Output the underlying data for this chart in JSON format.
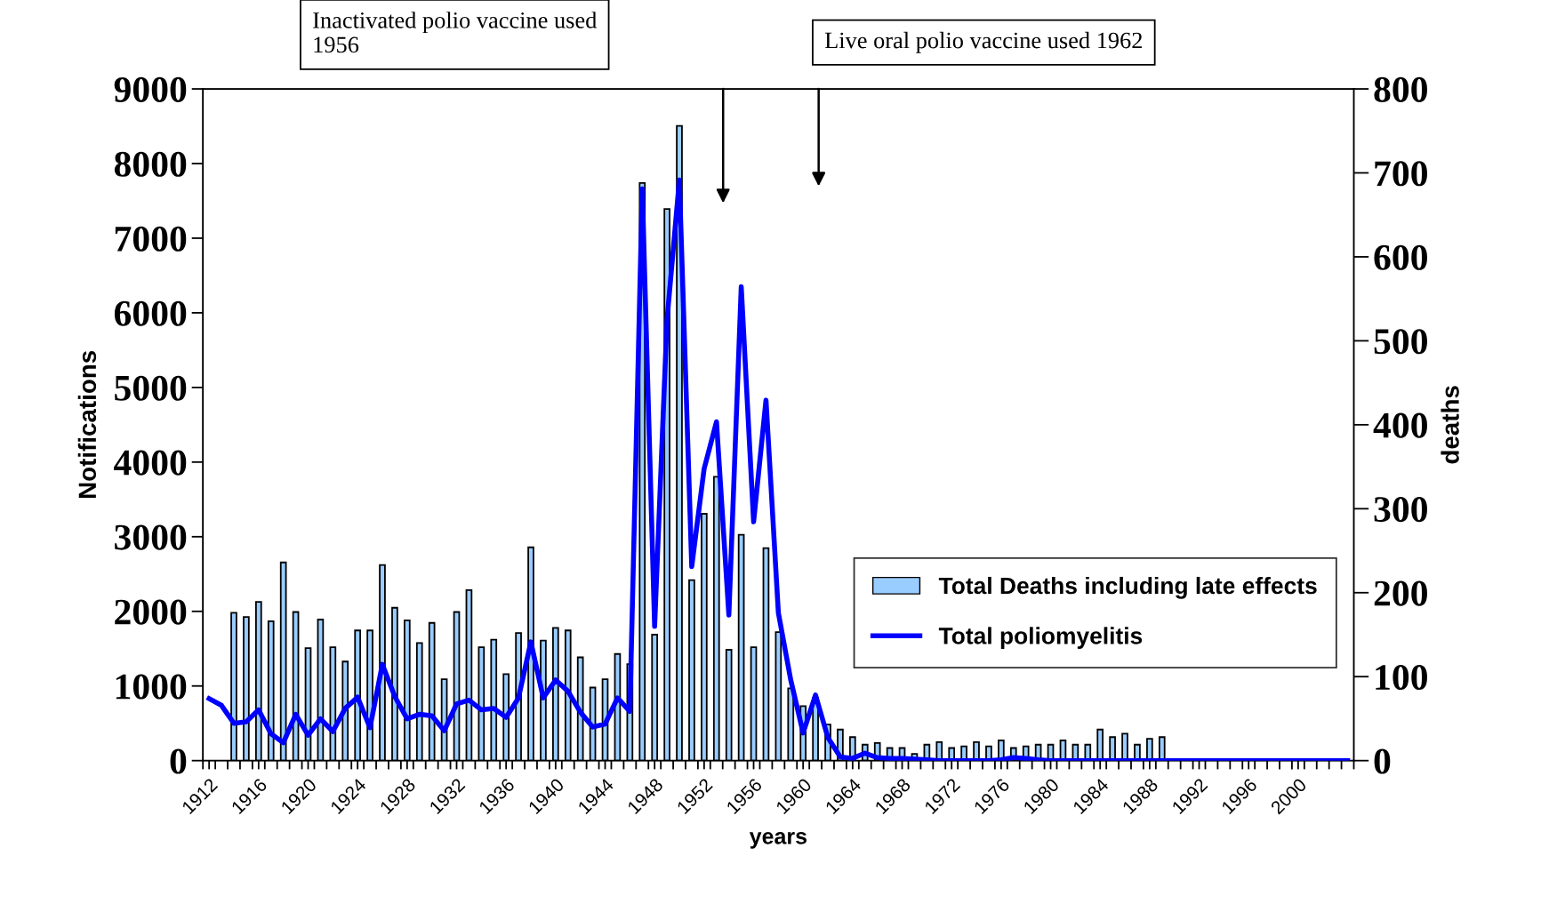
{
  "chart_data": {
    "type": "bar",
    "xlabel": "years",
    "ylabel": "Notifications",
    "y2label": "deaths",
    "x": [
      1912,
      1913,
      1914,
      1915,
      1916,
      1917,
      1918,
      1919,
      1920,
      1921,
      1922,
      1923,
      1924,
      1925,
      1926,
      1927,
      1928,
      1929,
      1930,
      1931,
      1932,
      1933,
      1934,
      1935,
      1936,
      1937,
      1938,
      1939,
      1940,
      1941,
      1942,
      1943,
      1944,
      1945,
      1946,
      1947,
      1948,
      1949,
      1950,
      1951,
      1952,
      1953,
      1954,
      1955,
      1956,
      1957,
      1958,
      1959,
      1960,
      1961,
      1962,
      1963,
      1964,
      1965,
      1966,
      1967,
      1968,
      1969,
      1970,
      1971,
      1972,
      1973,
      1974,
      1975,
      1976,
      1977,
      1978,
      1979,
      1980,
      1981,
      1982,
      1983,
      1984,
      1985,
      1986,
      1987,
      1988,
      1989,
      1990,
      1991,
      1992,
      1993,
      1994,
      1995,
      1996,
      1997,
      1998,
      1999,
      2000,
      2001,
      2002,
      2003,
      2004
    ],
    "series": [
      {
        "name": "Total Deaths including late effects",
        "axis": "y2",
        "color": "#99ccff",
        "values": [
          null,
          null,
          176,
          171,
          189,
          166,
          236,
          177,
          134,
          168,
          135,
          118,
          155,
          155,
          233,
          182,
          167,
          140,
          164,
          97,
          177,
          203,
          135,
          144,
          103,
          152,
          254,
          143,
          158,
          155,
          123,
          87,
          97,
          127,
          115,
          688,
          150,
          657,
          756,
          215,
          294,
          338,
          132,
          269,
          135,
          253,
          153,
          86,
          65,
          75,
          43,
          37,
          28,
          19,
          21,
          15,
          15,
          8,
          19,
          22,
          15,
          17,
          22,
          17,
          24,
          15,
          17,
          19,
          19,
          24,
          19,
          19,
          37,
          28,
          32,
          19,
          26,
          28,
          null,
          null,
          null,
          null,
          null,
          null,
          null,
          null,
          null,
          null,
          null,
          null,
          null,
          null,
          null
        ]
      },
      {
        "name": "Total poliomyelitis",
        "type": "line",
        "color": "#0000ff",
        "values": [
          830,
          740,
          500,
          520,
          680,
          360,
          240,
          620,
          340,
          560,
          390,
          700,
          850,
          440,
          1290,
          860,
          560,
          620,
          600,
          400,
          760,
          810,
          680,
          700,
          580,
          840,
          1590,
          840,
          1080,
          930,
          650,
          450,
          490,
          840,
          660,
          7660,
          1800,
          5900,
          7780,
          2600,
          3910,
          4540,
          1950,
          6350,
          3200,
          4830,
          1980,
          1080,
          370,
          880,
          310,
          50,
          30,
          100,
          40,
          30,
          30,
          20,
          10,
          0,
          0,
          0,
          0,
          0,
          10,
          40,
          30,
          10,
          0,
          0,
          0,
          0,
          0,
          0,
          0,
          0,
          0,
          0,
          0,
          0,
          0,
          0,
          0,
          0,
          0,
          0,
          0,
          0,
          0,
          0,
          0,
          0,
          0
        ]
      }
    ],
    "xlim": [
      1911.5,
      2004.5
    ],
    "xticks": [
      1912,
      1916,
      1920,
      1924,
      1928,
      1932,
      1936,
      1940,
      1944,
      1948,
      1952,
      1956,
      1960,
      1964,
      1968,
      1972,
      1976,
      1980,
      1984,
      1988,
      1992,
      1996,
      2000,
      {
        "value": 1911.5,
        "label": null
      },
      {
        "value": 1912.5,
        "label": null
      },
      {
        "value": 1913.5,
        "label": null
      },
      {
        "value": 1914.5,
        "label": null
      },
      {
        "value": 1915.5,
        "label": null
      },
      {
        "value": 1916.5,
        "label": null
      },
      {
        "value": 1917.5,
        "label": null
      },
      {
        "value": 1918.5,
        "label": null
      },
      {
        "value": 1919.5,
        "label": null
      },
      {
        "value": 1920.5,
        "label": null
      },
      {
        "value": 1921.5,
        "label": null
      },
      {
        "value": 1922.5,
        "label": null
      },
      {
        "value": 1923.5,
        "label": null
      },
      {
        "value": 1924.5,
        "label": null
      },
      {
        "value": 1925.5,
        "label": null
      },
      {
        "value": 1926.5,
        "label": null
      },
      {
        "value": 1927.5,
        "label": null
      },
      {
        "value": 1928.5,
        "label": null
      },
      {
        "value": 1929.5,
        "label": null
      },
      {
        "value": 1930.5,
        "label": null
      },
      {
        "value": 1931.5,
        "label": null
      },
      {
        "value": 1932.5,
        "label": null
      },
      {
        "value": 1933.5,
        "label": null
      },
      {
        "value": 1934.5,
        "label": null
      },
      {
        "value": 1935.5,
        "label": null
      },
      {
        "value": 1936.5,
        "label": null
      },
      {
        "value": 1937.5,
        "label": null
      },
      {
        "value": 1938.5,
        "label": null
      },
      {
        "value": 1939.5,
        "label": null
      },
      {
        "value": 1940.5,
        "label": null
      },
      {
        "value": 1941.5,
        "label": null
      },
      {
        "value": 1942.5,
        "label": null
      },
      {
        "value": 1943.5,
        "label": null
      },
      {
        "value": 1944.5,
        "label": null
      },
      {
        "value": 1945.5,
        "label": null
      },
      {
        "value": 1946.5,
        "label": null
      },
      {
        "value": 1947.5,
        "label": null
      },
      {
        "value": 1948.5,
        "label": null
      },
      {
        "value": 1949.5,
        "label": null
      },
      {
        "value": 1950.5,
        "label": null
      },
      {
        "value": 1951.5,
        "label": null
      },
      {
        "value": 1952.5,
        "label": null
      },
      {
        "value": 1953.5,
        "label": null
      },
      {
        "value": 1954.5,
        "label": null
      },
      {
        "value": 1955.5,
        "label": null
      },
      {
        "value": 1956.5,
        "label": null
      },
      {
        "value": 1957.5,
        "label": null
      },
      {
        "value": 1958.5,
        "label": null
      },
      {
        "value": 1959.5,
        "label": null
      },
      {
        "value": 1960.5,
        "label": null
      },
      {
        "value": 1961.5,
        "label": null
      },
      {
        "value": 1962.5,
        "label": null
      },
      {
        "value": 1963.5,
        "label": null
      },
      {
        "value": 1964.5,
        "label": null
      },
      {
        "value": 1965.5,
        "label": null
      },
      {
        "value": 1966.5,
        "label": null
      },
      {
        "value": 1967.5,
        "label": null
      },
      {
        "value": 1968.5,
        "label": null
      },
      {
        "value": 1969.5,
        "label": null
      },
      {
        "value": 1970.5,
        "label": null
      },
      {
        "value": 1971.5,
        "label": null
      },
      {
        "value": 1972.5,
        "label": null
      },
      {
        "value": 1973.5,
        "label": null
      },
      {
        "value": 1974.5,
        "label": null
      },
      {
        "value": 1975.5,
        "label": null
      },
      {
        "value": 1976.5,
        "label": null
      },
      {
        "value": 1977.5,
        "label": null
      },
      {
        "value": 1978.5,
        "label": null
      },
      {
        "value": 1979.5,
        "label": null
      },
      {
        "value": 1980.5,
        "label": null
      },
      {
        "value": 1981.5,
        "label": null
      },
      {
        "value": 1982.5,
        "label": null
      },
      {
        "value": 1983.5,
        "label": null
      },
      {
        "value": 1984.5,
        "label": null
      },
      {
        "value": 1985.5,
        "label": null
      },
      {
        "value": 1986.5,
        "label": null
      },
      {
        "value": 1987.5,
        "label": null
      },
      {
        "value": 1988.5,
        "label": null
      },
      {
        "value": 1989.5,
        "label": null
      },
      {
        "value": 1990.5,
        "label": null
      },
      {
        "value": 1991.5,
        "label": null
      },
      {
        "value": 1992.5,
        "label": null
      },
      {
        "value": 1993.5,
        "label": null
      },
      {
        "value": 1994.5,
        "label": null
      },
      {
        "value": 1995.5,
        "label": null
      },
      {
        "value": 1996.5,
        "label": null
      },
      {
        "value": 1997.5,
        "label": null
      },
      {
        "value": 1998.5,
        "label": null
      },
      {
        "value": 1999.5,
        "label": null
      },
      {
        "value": 2000.5,
        "label": null
      },
      {
        "value": 2001.5,
        "label": null
      },
      {
        "value": 2002.5,
        "label": null
      },
      {
        "value": 2003.5,
        "label": null
      },
      {
        "value": 2004.5,
        "label": null
      }
    ],
    "ylim": [
      0,
      9000
    ],
    "yticks": [
      0,
      1000,
      2000,
      3000,
      4000,
      5000,
      6000,
      7000,
      8000,
      9000
    ],
    "y2lim": [
      0,
      800
    ],
    "y2ticks": [
      0,
      100,
      200,
      300,
      400,
      500,
      600,
      700,
      800
    ],
    "annotations": [
      "Inactivated polio vaccine used\n1956",
      "Live oral polio vaccine used 1962"
    ],
    "legend": "right",
    "grid": false
  }
}
